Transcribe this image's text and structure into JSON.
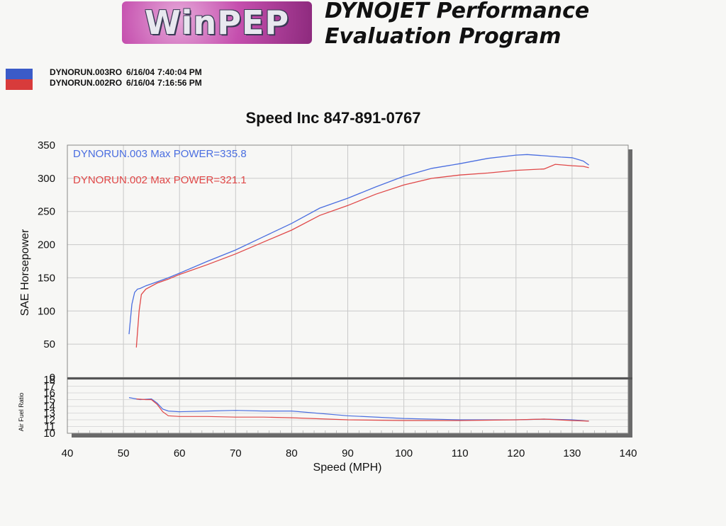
{
  "header": {
    "logo_text": "WinPEP",
    "title_line1": "DYNOJET Performance",
    "title_line2": "Evaluation Program"
  },
  "legend": [
    {
      "file": "DYNORUN.003RO",
      "date": "6/16/04",
      "time": "7:40:04 PM",
      "color": "#3b5bc8"
    },
    {
      "file": "DYNORUN.002RO",
      "date": "6/16/04",
      "time": "7:16:56 PM",
      "color": "#d83b3b"
    }
  ],
  "colors": {
    "blue": "#4a6ee0",
    "red": "#e04848"
  },
  "chart_data": [
    {
      "type": "line",
      "title": "Speed Inc 847-891-0767",
      "ylabel": "SAE Horsepower",
      "xlabel": "Speed (MPH)",
      "xlim": [
        40,
        140
      ],
      "ylim": [
        0,
        350
      ],
      "xticks": [
        40,
        50,
        60,
        70,
        80,
        90,
        100,
        110,
        120,
        130,
        140
      ],
      "yticks": [
        0,
        50,
        100,
        150,
        200,
        250,
        300,
        350
      ],
      "annotations": [
        "DYNORUN.003  Max POWER=335.8",
        "DYNORUN.002  Max POWER=321.1"
      ],
      "series": [
        {
          "name": "DYNORUN.003",
          "x": [
            51,
            51.5,
            52,
            52.5,
            53,
            54,
            56,
            58,
            60,
            65,
            70,
            75,
            80,
            85,
            90,
            95,
            100,
            105,
            110,
            115,
            120,
            122,
            125,
            128,
            130,
            132,
            133
          ],
          "y": [
            65,
            110,
            128,
            133,
            134,
            138,
            144,
            150,
            157,
            175,
            192,
            212,
            232,
            255,
            270,
            287,
            303,
            315,
            322,
            330,
            335,
            335.8,
            334,
            332,
            331,
            326,
            320
          ]
        },
        {
          "name": "DYNORUN.002",
          "x": [
            52.3,
            52.8,
            53.2,
            54,
            56,
            58,
            60,
            65,
            70,
            75,
            80,
            85,
            90,
            95,
            100,
            105,
            110,
            115,
            120,
            125,
            127,
            130,
            132,
            133
          ],
          "y": [
            45,
            100,
            125,
            133,
            142,
            148,
            155,
            170,
            186,
            204,
            222,
            244,
            259,
            276,
            290,
            300,
            305,
            308,
            312,
            314,
            321.1,
            319,
            318,
            316
          ]
        }
      ]
    },
    {
      "type": "line",
      "ylabel": "Air Fuel Ratio",
      "xlim": [
        40,
        140
      ],
      "ylim": [
        10,
        18
      ],
      "yticks": [
        10,
        11,
        12,
        13,
        14,
        15,
        16,
        17,
        18
      ],
      "series": [
        {
          "name": "DYNORUN.003",
          "x": [
            51,
            53,
            55,
            56,
            57,
            58,
            60,
            65,
            70,
            75,
            80,
            90,
            100,
            110,
            120,
            125,
            130,
            133
          ],
          "y": [
            15.3,
            15.0,
            15.1,
            14.5,
            13.6,
            13.3,
            13.2,
            13.3,
            13.4,
            13.3,
            13.3,
            12.6,
            12.2,
            12.0,
            12.0,
            12.1,
            12.0,
            11.8
          ]
        },
        {
          "name": "DYNORUN.002",
          "x": [
            52.3,
            54,
            55,
            56,
            57,
            58,
            60,
            65,
            70,
            75,
            80,
            90,
            100,
            110,
            120,
            125,
            130,
            133
          ],
          "y": [
            15.1,
            15.0,
            15.0,
            14.3,
            13.2,
            12.6,
            12.5,
            12.5,
            12.4,
            12.4,
            12.3,
            12.0,
            11.9,
            11.9,
            12.0,
            12.1,
            11.9,
            11.8
          ]
        }
      ]
    }
  ]
}
